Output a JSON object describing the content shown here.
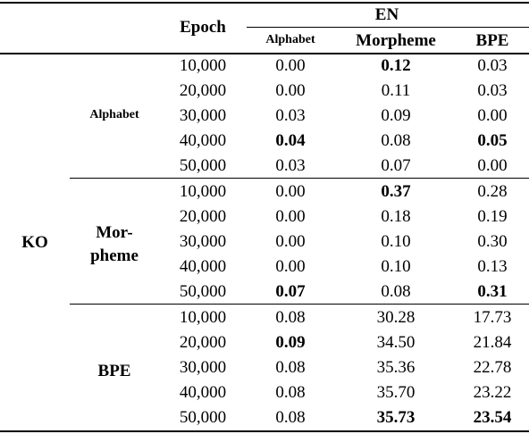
{
  "header": {
    "epoch_label": "Epoch",
    "en_label": "EN",
    "col_alphabet": "Alphabet",
    "col_morpheme": "Morpheme",
    "col_bpe": "BPE"
  },
  "ko_label": "KO",
  "groups": [
    {
      "label_lines": [
        "Alphabet"
      ],
      "rows": [
        {
          "epoch": "10,000",
          "alphabet": "0.00",
          "morpheme": "0.12",
          "bpe": "0.03",
          "bold": [
            false,
            true,
            false
          ]
        },
        {
          "epoch": "20,000",
          "alphabet": "0.00",
          "morpheme": "0.11",
          "bpe": "0.03",
          "bold": [
            false,
            false,
            false
          ]
        },
        {
          "epoch": "30,000",
          "alphabet": "0.03",
          "morpheme": "0.09",
          "bpe": "0.00",
          "bold": [
            false,
            false,
            false
          ]
        },
        {
          "epoch": "40,000",
          "alphabet": "0.04",
          "morpheme": "0.08",
          "bpe": "0.05",
          "bold": [
            true,
            false,
            true
          ]
        },
        {
          "epoch": "50,000",
          "alphabet": "0.03",
          "morpheme": "0.07",
          "bpe": "0.00",
          "bold": [
            false,
            false,
            false
          ]
        }
      ]
    },
    {
      "label_lines": [
        "Mor-",
        "pheme"
      ],
      "rows": [
        {
          "epoch": "10,000",
          "alphabet": "0.00",
          "morpheme": "0.37",
          "bpe": "0.28",
          "bold": [
            false,
            true,
            false
          ]
        },
        {
          "epoch": "20,000",
          "alphabet": "0.00",
          "morpheme": "0.18",
          "bpe": "0.19",
          "bold": [
            false,
            false,
            false
          ]
        },
        {
          "epoch": "30,000",
          "alphabet": "0.00",
          "morpheme": "0.10",
          "bpe": "0.30",
          "bold": [
            false,
            false,
            false
          ]
        },
        {
          "epoch": "40,000",
          "alphabet": "0.00",
          "morpheme": "0.10",
          "bpe": "0.13",
          "bold": [
            false,
            false,
            false
          ]
        },
        {
          "epoch": "50,000",
          "alphabet": "0.07",
          "morpheme": "0.08",
          "bpe": "0.31",
          "bold": [
            true,
            false,
            true
          ]
        }
      ]
    },
    {
      "label_lines": [
        "BPE"
      ],
      "rows": [
        {
          "epoch": "10,000",
          "alphabet": "0.08",
          "morpheme": "30.28",
          "bpe": "17.73",
          "bold": [
            false,
            false,
            false
          ]
        },
        {
          "epoch": "20,000",
          "alphabet": "0.09",
          "morpheme": "34.50",
          "bpe": "21.84",
          "bold": [
            true,
            false,
            false
          ]
        },
        {
          "epoch": "30,000",
          "alphabet": "0.08",
          "morpheme": "35.36",
          "bpe": "22.78",
          "bold": [
            false,
            false,
            false
          ]
        },
        {
          "epoch": "40,000",
          "alphabet": "0.08",
          "morpheme": "35.70",
          "bpe": "23.22",
          "bold": [
            false,
            false,
            false
          ]
        },
        {
          "epoch": "50,000",
          "alphabet": "0.08",
          "morpheme": "35.73",
          "bpe": "23.54",
          "bold": [
            false,
            true,
            true
          ]
        }
      ]
    }
  ]
}
